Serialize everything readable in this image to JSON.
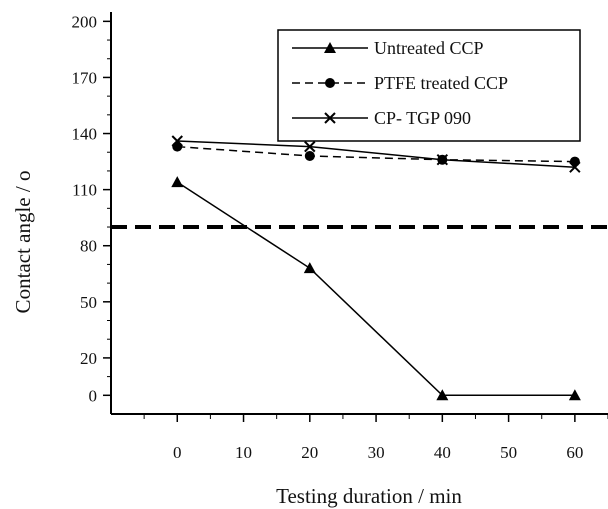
{
  "chart_data": {
    "type": "line",
    "xlabel": "Testing duration  / min",
    "ylabel": "Contact angle / o",
    "xlim": [
      -10,
      65
    ],
    "ylim": [
      -10,
      205
    ],
    "xticks": [
      0,
      10,
      20,
      30,
      40,
      50,
      60
    ],
    "yticks": [
      0,
      20,
      50,
      80,
      110,
      140,
      170,
      200
    ],
    "grid": false,
    "legend_position": "top-right",
    "reference_line": {
      "y": 90,
      "style": "dashed",
      "color": "#000000"
    },
    "series": [
      {
        "name": "Untreated CCP",
        "marker": "triangle",
        "line": "solid",
        "color": "#000000",
        "x": [
          0,
          20,
          40,
          60
        ],
        "y": [
          114,
          68,
          0,
          0
        ]
      },
      {
        "name": "PTFE treated CCP",
        "marker": "circle",
        "line": "dashed",
        "color": "#000000",
        "x": [
          0,
          20,
          40,
          60
        ],
        "y": [
          133,
          128,
          126,
          125
        ]
      },
      {
        "name": "CP- TGP 090",
        "marker": "x",
        "line": "solid",
        "color": "#000000",
        "x": [
          0,
          20,
          40,
          60
        ],
        "y": [
          136,
          133,
          126,
          122
        ]
      }
    ]
  }
}
